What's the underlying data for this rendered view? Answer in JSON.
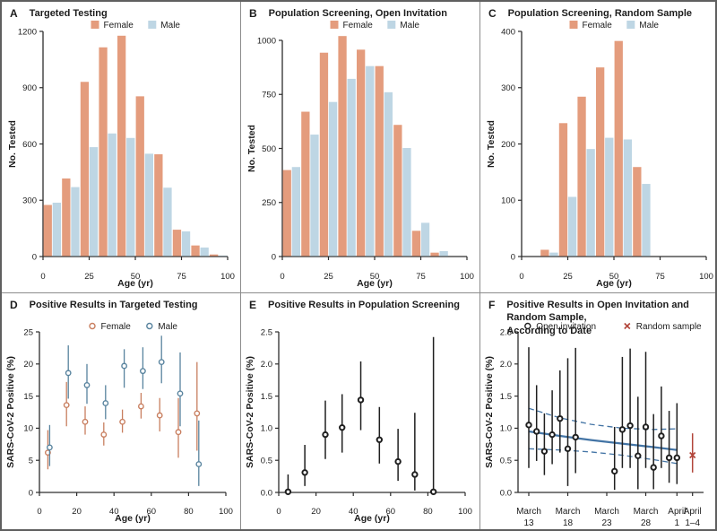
{
  "figure": {
    "description": "Six-panel figure of SARS-CoV-2 testing in Iceland: numbers tested and percent positive by age, sex, screening method, and date",
    "text_color": "#1c1c1c",
    "axis_color": "#2d2d2d",
    "divider_color": "#8c8c8c",
    "border_color": "#5f5f5f",
    "background": "#ffffff"
  },
  "colors": {
    "female_bar": "#E49C7D",
    "male_bar": "#BED6E4",
    "female_marker": "#C87E5F",
    "male_marker": "#58839E",
    "black_marker": "#1f1f1f",
    "red_marker": "#B2453A",
    "trend_line": "#4374A5"
  },
  "chart_data": [
    {
      "id": "a",
      "letter": "A",
      "title_lines": [
        "Targeted Testing"
      ],
      "type": "bar",
      "ylabel": "No. Tested",
      "xlabel": "Age (yr)",
      "ytick_vals": [
        0,
        300,
        600,
        900,
        1200
      ],
      "ytick_labels": [
        "0",
        "300",
        "600",
        "900",
        "1200"
      ],
      "xtick_vals": [
        0,
        25,
        50,
        75,
        100
      ],
      "xtick_labels": [
        "0",
        "25",
        "50",
        "75",
        "100"
      ],
      "xmax": 100,
      "bin_start": 0,
      "bin_size": 10,
      "age_bins": [
        "0-9",
        "10-19",
        "20-29",
        "30-39",
        "40-49",
        "50-59",
        "60-69",
        "70-79",
        "80-89",
        "90-99"
      ],
      "legend": [
        {
          "label": "Female",
          "colorKey": "female_bar"
        },
        {
          "label": "Male",
          "colorKey": "male_bar"
        }
      ],
      "series": [
        {
          "name": "Female",
          "colorKey": "female_bar",
          "values": [
            275,
            416,
            931,
            1115,
            1177,
            854,
            545,
            143,
            59,
            11
          ]
        },
        {
          "name": "Male",
          "colorKey": "male_bar",
          "values": [
            287,
            370,
            583,
            656,
            632,
            548,
            367,
            134,
            48,
            5
          ]
        }
      ]
    },
    {
      "id": "b",
      "letter": "B",
      "title_lines": [
        "Population Screening, Open Invitation"
      ],
      "type": "bar",
      "ylabel": "No. Tested",
      "xlabel": "Age (yr)",
      "ytick_vals": [
        0,
        250,
        500,
        750,
        1000
      ],
      "ytick_labels": [
        "0",
        "250",
        "500",
        "750",
        "1000"
      ],
      "xtick_vals": [
        0,
        25,
        50,
        75,
        100
      ],
      "xtick_labels": [
        "0",
        "25",
        "50",
        "75",
        "100"
      ],
      "xmax": 100,
      "bin_start": 0,
      "bin_size": 10,
      "age_bins": [
        "0-9",
        "10-19",
        "20-29",
        "30-39",
        "40-49",
        "50-59",
        "60-69",
        "70-79",
        "80-89",
        "90-99"
      ],
      "legend": [
        {
          "label": "Female",
          "colorKey": "female_bar"
        },
        {
          "label": "Male",
          "colorKey": "male_bar"
        }
      ],
      "series": [
        {
          "name": "Female",
          "colorKey": "female_bar",
          "values": [
            400,
            670,
            943,
            1020,
            957,
            881,
            609,
            119,
            18,
            0
          ]
        },
        {
          "name": "Male",
          "colorKey": "male_bar",
          "values": [
            414,
            564,
            715,
            822,
            881,
            760,
            502,
            156,
            25,
            0
          ]
        }
      ]
    },
    {
      "id": "c",
      "letter": "C",
      "title_lines": [
        "Population Screening, Random Sample"
      ],
      "type": "bar",
      "ylabel": "No. Tested",
      "xlabel": "Age (yr)",
      "ytick_vals": [
        0,
        100,
        200,
        300,
        400
      ],
      "ytick_labels": [
        "0",
        "100",
        "200",
        "300",
        "400"
      ],
      "xtick_vals": [
        0,
        25,
        50,
        75,
        100
      ],
      "xtick_labels": [
        "0",
        "25",
        "50",
        "75",
        "100"
      ],
      "xmax": 100,
      "bin_start": 0,
      "bin_size": 10,
      "age_bins": [
        "0-9",
        "10-19",
        "20-29",
        "30-39",
        "40-49",
        "50-59",
        "60-69",
        "70-79",
        "80-89",
        "90-99"
      ],
      "legend": [
        {
          "label": "Female",
          "colorKey": "female_bar"
        },
        {
          "label": "Male",
          "colorKey": "male_bar"
        }
      ],
      "series": [
        {
          "name": "Female",
          "colorKey": "female_bar",
          "values": [
            0,
            12,
            237,
            284,
            336,
            383,
            159,
            0,
            0,
            0
          ]
        },
        {
          "name": "Male",
          "colorKey": "male_bar",
          "values": [
            0,
            7,
            106,
            191,
            211,
            208,
            129,
            0,
            0,
            0
          ]
        }
      ]
    },
    {
      "id": "d",
      "letter": "D",
      "title_lines": [
        "Positive Results in Targeted Testing"
      ],
      "type": "scatter",
      "ylabel": "SARS-CoV-2 Positive (%)",
      "xlabel": "Age (yr)",
      "ytick_vals": [
        0,
        5,
        10,
        15,
        20,
        25
      ],
      "ytick_labels": [
        "0",
        "5",
        "10",
        "15",
        "20",
        "25"
      ],
      "xtick_vals": [
        0,
        20,
        40,
        60,
        80,
        100
      ],
      "xtick_labels": [
        "0",
        "20",
        "40",
        "60",
        "80",
        "100"
      ],
      "xmax": 100,
      "point_format": "[age, percent_positive, ci_low, ci_high]",
      "legend": [
        {
          "label": "Female",
          "colorKey": "female_marker",
          "marker": "open-circle"
        },
        {
          "label": "Male",
          "colorKey": "male_marker",
          "marker": "open-circle"
        }
      ],
      "series": [
        {
          "name": "Female",
          "colorKey": "female_marker",
          "marker": "open-circle",
          "points": [
            [
              5,
              6.2,
              3.6,
              9.7
            ],
            [
              15,
              13.6,
              10.3,
              17.2
            ],
            [
              25,
              11.0,
              9.0,
              13.4
            ],
            [
              35,
              9.0,
              7.3,
              10.9
            ],
            [
              45,
              11.0,
              9.3,
              12.9
            ],
            [
              55,
              13.4,
              11.5,
              15.5
            ],
            [
              65,
              12.0,
              9.5,
              14.7
            ],
            [
              75,
              9.4,
              5.4,
              14.7
            ],
            [
              85,
              12.3,
              6.5,
              20.3
            ]
          ]
        },
        {
          "name": "Male",
          "colorKey": "male_marker",
          "marker": "open-circle",
          "points": [
            [
              5,
              7.0,
              4.1,
              10.5
            ],
            [
              15,
              18.6,
              14.6,
              22.9
            ],
            [
              25,
              16.7,
              13.8,
              20.0
            ],
            [
              35,
              13.9,
              11.4,
              16.7
            ],
            [
              45,
              19.7,
              16.3,
              22.3
            ],
            [
              55,
              18.9,
              16.1,
              22.6
            ],
            [
              65,
              20.3,
              17.0,
              24.4
            ],
            [
              75,
              15.4,
              10.3,
              21.8
            ],
            [
              85,
              4.4,
              1.0,
              11.2
            ]
          ]
        }
      ]
    },
    {
      "id": "e",
      "letter": "E",
      "title_lines": [
        "Positive Results in Population Screening"
      ],
      "type": "scatter",
      "ylabel": "SARS-CoV-2 Positive (%)",
      "xlabel": "Age (yr)",
      "ytick_vals": [
        0,
        0.5,
        1.0,
        1.5,
        2.0,
        2.5
      ],
      "ytick_labels": [
        "0.0",
        "0.5",
        "1.0",
        "1.5",
        "2.0",
        "2.5"
      ],
      "xtick_vals": [
        0,
        20,
        40,
        60,
        80,
        100
      ],
      "xtick_labels": [
        "0",
        "20",
        "40",
        "60",
        "80",
        "100"
      ],
      "xmax": 100,
      "point_format": "[age, percent_positive, ci_low, ci_high]",
      "legend": [],
      "series": [
        {
          "name": "Population screening",
          "colorKey": "black_marker",
          "marker": "open-circle",
          "points": [
            [
              5,
              0.01,
              0.0,
              0.28
            ],
            [
              14,
              0.31,
              0.1,
              0.74
            ],
            [
              25,
              0.9,
              0.52,
              1.43
            ],
            [
              34,
              1.01,
              0.62,
              1.53
            ],
            [
              44,
              1.44,
              0.97,
              2.04
            ],
            [
              54,
              0.82,
              0.45,
              1.33
            ],
            [
              64,
              0.48,
              0.18,
              0.99
            ],
            [
              73,
              0.28,
              0.03,
              1.24
            ],
            [
              83,
              0.01,
              0.0,
              2.42
            ]
          ]
        }
      ]
    },
    {
      "id": "f",
      "letter": "F",
      "title_lines": [
        "Positive Results in Open Invitation and Random Sample,",
        "According to Date"
      ],
      "type": "scatter",
      "ylabel": "SARS-CoV-2 Positive (%)",
      "xlabel": "",
      "ytick_vals": [
        0,
        0.5,
        1.0,
        1.5,
        2.0,
        2.5
      ],
      "ytick_labels": [
        "0.0",
        "0.5",
        "1.0",
        "1.5",
        "2.0",
        "2.5"
      ],
      "x_unit": "days since March 13",
      "xtick_vals": [
        0,
        5,
        10,
        15,
        19,
        21
      ],
      "xtick_labels": [
        [
          "March",
          "13"
        ],
        [
          "March",
          "18"
        ],
        [
          "March",
          "23"
        ],
        [
          "March",
          "28"
        ],
        [
          "April",
          "1"
        ],
        [
          "April",
          "1–4"
        ]
      ],
      "point_format": "[day, percent_positive, ci_low, ci_high]",
      "legend": [
        {
          "label": "Open invitation",
          "colorKey": "black_marker",
          "marker": "open-circle"
        },
        {
          "label": "Random sample",
          "colorKey": "red_marker",
          "marker": "x"
        }
      ],
      "series": [
        {
          "name": "Open invitation",
          "colorKey": "black_marker",
          "marker": "open-circle",
          "points": [
            [
              0,
              1.05,
              0.38,
              2.26
            ],
            [
              1,
              0.95,
              0.49,
              1.67
            ],
            [
              2,
              0.64,
              0.27,
              1.23
            ],
            [
              3,
              0.9,
              0.44,
              1.59
            ],
            [
              4,
              1.15,
              0.62,
              1.9
            ],
            [
              5,
              0.68,
              0.1,
              2.09
            ],
            [
              6,
              0.86,
              0.3,
              2.25
            ],
            [
              11,
              0.33,
              0.04,
              1.02
            ],
            [
              12,
              0.98,
              0.38,
              2.11
            ],
            [
              13,
              1.04,
              0.38,
              2.24
            ],
            [
              14,
              0.57,
              0.05,
              1.49
            ],
            [
              15,
              1.02,
              0.38,
              2.19
            ],
            [
              16,
              0.39,
              0.05,
              1.22
            ],
            [
              17,
              0.88,
              0.38,
              1.65
            ],
            [
              18,
              0.54,
              0.15,
              1.27
            ],
            [
              19,
              0.54,
              0.13,
              1.39
            ]
          ]
        },
        {
          "name": "Random sample",
          "colorKey": "red_marker",
          "marker": "x",
          "points": [
            [
              21,
              0.58,
              0.31,
              0.92
            ]
          ]
        }
      ],
      "trend": {
        "solid": [
          [
            0,
            0.95
          ],
          [
            4,
            0.88
          ],
          [
            8,
            0.815
          ],
          [
            12,
            0.76
          ],
          [
            16,
            0.705
          ],
          [
            19,
            0.66
          ]
        ],
        "upper_dashed": [
          [
            0,
            1.31
          ],
          [
            4,
            1.16
          ],
          [
            8,
            1.06
          ],
          [
            12,
            1.0
          ],
          [
            16,
            0.98
          ],
          [
            19,
            0.99
          ]
        ],
        "lower_dashed": [
          [
            0,
            0.68
          ],
          [
            4,
            0.66
          ],
          [
            8,
            0.63
          ],
          [
            12,
            0.58
          ],
          [
            16,
            0.51
          ],
          [
            19,
            0.45
          ]
        ]
      }
    }
  ]
}
